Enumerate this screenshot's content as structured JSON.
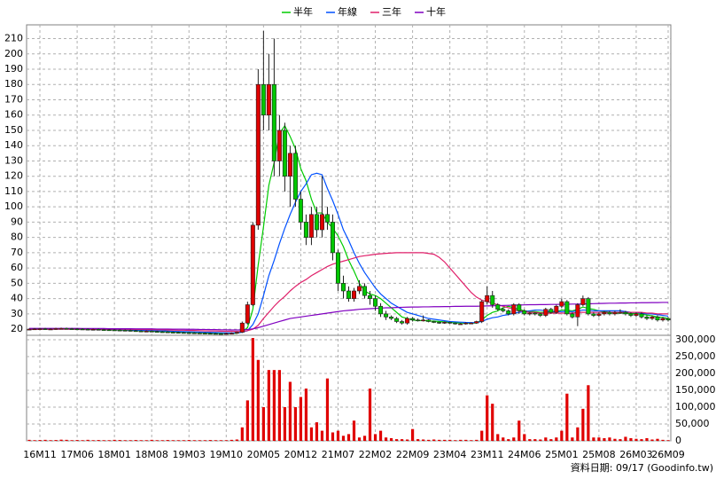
{
  "chart_data": {
    "type": "candlestick",
    "categories": [
      null,
      null,
      "16M11",
      null,
      null,
      null,
      null,
      null,
      null,
      "17M06",
      null,
      null,
      null,
      null,
      null,
      null,
      "18M01",
      null,
      null,
      null,
      null,
      null,
      null,
      "18M08",
      null,
      null,
      null,
      null,
      null,
      null,
      "19M03",
      null,
      null,
      null,
      null,
      null,
      null,
      "19M10",
      null,
      null,
      null,
      null,
      null,
      null,
      "20M05",
      null,
      null,
      null,
      null,
      null,
      null,
      "20M12",
      null,
      null,
      null,
      null,
      null,
      null,
      "21M07",
      null,
      null,
      null,
      null,
      null,
      null,
      "22M02",
      null,
      null,
      null,
      null,
      null,
      null,
      "22M09",
      null,
      null,
      null,
      null,
      null,
      null,
      "23M04",
      null,
      null,
      null,
      null,
      null,
      null,
      "23M11",
      null,
      null,
      null,
      null,
      null,
      null,
      "24M06",
      null,
      null,
      null,
      null,
      null,
      null,
      "25M01",
      null,
      null,
      null,
      null,
      null,
      null,
      "25M08",
      null,
      null,
      null,
      null,
      null,
      null,
      "26M03",
      null,
      null,
      null,
      null,
      null,
      "26M09"
    ],
    "open": [
      20,
      20,
      20.2,
      20.3,
      20,
      20.1,
      20.4,
      20.5,
      20.3,
      20.2,
      20.1,
      20,
      19.8,
      19.9,
      19.7,
      19.6,
      19.5,
      19.4,
      19.3,
      19.2,
      19,
      18.8,
      18.6,
      18.7,
      18.5,
      18.3,
      18.2,
      18,
      17.9,
      17.8,
      17.7,
      17.6,
      17.5,
      17.4,
      17.3,
      17.2,
      17.1,
      17,
      17.2,
      17.4,
      18,
      24,
      36,
      88,
      180,
      160,
      180,
      130,
      150,
      120,
      135,
      105,
      90,
      80,
      95,
      85,
      95,
      90,
      70,
      50,
      45,
      40,
      45,
      48,
      42,
      40,
      35,
      30,
      28,
      27,
      25,
      24,
      27,
      26,
      25.5,
      26,
      25,
      24.5,
      24,
      24.5,
      24,
      23.5,
      23.5,
      24,
      24,
      25,
      38,
      42,
      36,
      33,
      32,
      30,
      36,
      32,
      30,
      30.5,
      30,
      29,
      33,
      31,
      35,
      38,
      30,
      28,
      36,
      40,
      30,
      29,
      30,
      31,
      30,
      31,
      31,
      30,
      29,
      30,
      28,
      27,
      28,
      26,
      27
    ],
    "high": [
      20.5,
      20.7,
      20.8,
      20.8,
      20.6,
      20.9,
      21,
      21,
      20.8,
      20.7,
      20.6,
      20.5,
      20.4,
      20.4,
      20.2,
      20.1,
      20,
      19.9,
      19.8,
      19.7,
      19.5,
      19.3,
      19.2,
      19.2,
      19,
      18.8,
      18.7,
      18.5,
      18.4,
      18.3,
      18.2,
      18.1,
      18,
      17.9,
      17.8,
      17.7,
      17.6,
      17.7,
      17.9,
      18.5,
      25,
      38,
      90,
      190,
      215,
      200,
      210,
      160,
      155,
      140,
      140,
      110,
      95,
      100,
      100,
      120,
      100,
      95,
      72,
      55,
      48,
      47,
      52,
      50,
      45,
      42,
      37,
      32,
      29,
      28,
      26,
      28,
      28,
      27,
      29,
      26.5,
      25.5,
      25,
      25,
      25,
      24.5,
      24,
      24.5,
      24.5,
      25.5,
      39,
      48,
      45,
      37,
      34,
      33,
      37,
      37,
      33,
      31,
      31,
      30.5,
      34,
      34,
      36,
      40,
      39,
      31,
      37,
      42,
      41,
      31,
      31,
      32,
      32,
      32,
      33,
      32,
      31,
      31,
      31,
      29,
      29,
      29,
      28,
      28
    ],
    "low": [
      19.5,
      19.5,
      19.7,
      19.5,
      19.5,
      19.6,
      19.9,
      19.8,
      19.7,
      19.6,
      19.5,
      19.3,
      19.3,
      19.2,
      19.1,
      19,
      18.9,
      18.8,
      18.7,
      18.5,
      18.3,
      18.1,
      18.1,
      18,
      17.8,
      17.7,
      17.5,
      17.4,
      17.3,
      17.2,
      17.1,
      17,
      16.9,
      16.8,
      16.7,
      16.6,
      16.5,
      16.5,
      16.7,
      16.9,
      17.5,
      23,
      35,
      85,
      150,
      150,
      120,
      120,
      110,
      100,
      100,
      85,
      75,
      75,
      80,
      80,
      85,
      65,
      45,
      40,
      38,
      38,
      43,
      40,
      36,
      32,
      28,
      26,
      26,
      24,
      23,
      23,
      25,
      25,
      25,
      24.5,
      24,
      23.5,
      23.5,
      23.5,
      23,
      23,
      23,
      23.5,
      23.5,
      24,
      36,
      34,
      32,
      31,
      29,
      29,
      30,
      29,
      29,
      29,
      28,
      28,
      30,
      30,
      34,
      29,
      27,
      22,
      35,
      29,
      28,
      28,
      29,
      29,
      29,
      30,
      29,
      28,
      28,
      27,
      26,
      26,
      25,
      25,
      25
    ],
    "close": [
      20,
      20.2,
      20.3,
      20,
      20.1,
      20.4,
      20.5,
      20.3,
      20.2,
      20.1,
      20,
      19.8,
      19.9,
      19.7,
      19.6,
      19.5,
      19.4,
      19.3,
      19.2,
      19,
      18.8,
      18.6,
      18.7,
      18.5,
      18.3,
      18.2,
      18,
      17.9,
      17.8,
      17.7,
      17.6,
      17.5,
      17.4,
      17.3,
      17.2,
      17.1,
      17,
      17.2,
      17.4,
      18,
      24,
      36,
      88,
      180,
      160,
      180,
      130,
      150,
      120,
      135,
      105,
      90,
      80,
      95,
      85,
      95,
      90,
      70,
      50,
      45,
      40,
      45,
      48,
      42,
      40,
      35,
      30,
      28,
      27,
      25,
      24,
      27,
      26,
      25.5,
      26,
      25,
      24.5,
      24,
      24.5,
      24,
      23.5,
      23.5,
      24,
      24,
      25,
      38,
      42,
      36,
      33,
      32,
      30,
      36,
      32,
      30,
      30.5,
      30,
      29,
      33,
      31,
      35,
      38,
      30,
      28,
      36,
      40,
      30,
      29,
      30,
      31,
      30,
      31,
      31,
      30,
      29,
      30,
      28,
      27,
      28,
      26,
      27,
      26
    ],
    "colors": {
      "up": "#e00000",
      "down": "#00c800",
      "outline": "#202020"
    },
    "ylim": [
      16,
      219
    ],
    "yticks": [
      20,
      30,
      40,
      50,
      60,
      70,
      80,
      90,
      100,
      110,
      120,
      130,
      140,
      150,
      160,
      170,
      180,
      190,
      200,
      210
    ],
    "grid": true,
    "series": [
      {
        "name": "半年",
        "color": "#00cc00",
        "values": [
          20,
          20.1,
          20.2,
          20.2,
          20.2,
          20.2,
          20.3,
          20.3,
          20.3,
          20.2,
          20.2,
          20.1,
          20,
          19.9,
          19.8,
          19.7,
          19.6,
          19.5,
          19.4,
          19.3,
          19.1,
          19,
          18.9,
          18.7,
          18.6,
          18.5,
          18.3,
          18.2,
          18.1,
          18,
          17.9,
          17.8,
          17.7,
          17.5,
          17.4,
          17.3,
          17.2,
          17.2,
          17.2,
          17.3,
          18.4,
          21,
          33,
          62,
          87,
          114,
          129,
          148,
          153,
          146,
          138,
          125,
          117,
          105,
          96,
          96,
          90,
          86,
          81,
          74,
          65,
          58,
          50,
          45,
          43,
          42,
          40,
          37,
          34,
          31,
          28,
          27,
          26,
          25.6,
          25.6,
          25.4,
          25.3,
          25,
          24.8,
          24.4,
          24.2,
          24,
          24,
          24,
          24,
          26,
          29,
          31,
          32,
          34,
          35,
          34,
          33,
          32,
          31.5,
          31.5,
          31,
          31,
          31,
          31.5,
          32.5,
          32.5,
          32,
          33,
          34.5,
          33.5,
          33,
          32,
          31.5,
          31,
          30.5,
          30.5,
          30.5,
          30.3,
          30.2,
          29.8,
          29.2,
          28.8,
          28,
          27.7,
          27
        ]
      },
      {
        "name": "年線",
        "color": "#0050ff",
        "values": [
          20,
          20,
          20.1,
          20.1,
          20.1,
          20.2,
          20.2,
          20.2,
          20.2,
          20.2,
          20.2,
          20.1,
          20.1,
          20,
          20,
          19.9,
          19.8,
          19.7,
          19.6,
          19.5,
          19.4,
          19.3,
          19.2,
          19.1,
          19,
          18.9,
          18.8,
          18.6,
          18.5,
          18.4,
          18.3,
          18.2,
          18.1,
          18,
          17.9,
          17.8,
          17.7,
          17.6,
          17.5,
          17.5,
          18,
          19,
          23,
          30,
          42,
          55,
          65,
          76,
          86,
          95,
          103,
          110,
          115,
          121,
          122,
          121,
          112,
          104,
          95,
          85,
          78,
          70,
          63,
          57,
          52,
          47,
          43,
          40,
          37,
          35,
          33,
          31,
          30,
          29,
          28,
          27,
          26.5,
          26,
          25.5,
          25,
          24.8,
          24.6,
          24.4,
          24.3,
          24.3,
          25,
          26.5,
          27.5,
          28,
          29,
          29.5,
          30.5,
          31,
          31.5,
          32,
          32.5,
          32.5,
          32,
          31.5,
          31.5,
          31.5,
          31.5,
          31.5,
          32,
          32.5,
          32.5,
          32,
          32,
          32,
          32,
          32,
          32,
          31.5,
          31,
          31,
          30.5,
          30,
          30,
          29.5,
          29,
          28.5
        ]
      },
      {
        "name": "三年",
        "color": "#e0206a",
        "values": [
          20,
          20,
          20,
          20,
          20,
          20,
          20,
          20,
          20,
          20,
          20,
          20,
          20,
          20,
          20,
          20,
          20,
          20,
          19.9,
          19.9,
          19.8,
          19.8,
          19.7,
          19.7,
          19.6,
          19.6,
          19.5,
          19.4,
          19.3,
          19.3,
          19.2,
          19.1,
          19,
          18.9,
          18.8,
          18.8,
          18.7,
          18.6,
          18.6,
          18.5,
          18.5,
          19,
          20,
          22.5,
          27,
          31,
          35,
          38.5,
          41.5,
          45,
          48,
          50.5,
          52.5,
          55,
          57,
          59,
          61,
          62.5,
          63.5,
          64.5,
          65.5,
          66.5,
          67.5,
          68,
          68.5,
          69,
          69.3,
          69.6,
          69.8,
          70,
          70,
          70,
          70,
          70,
          70,
          69.5,
          69,
          67,
          64,
          60,
          56,
          52,
          48,
          44,
          41,
          39,
          38,
          37,
          36,
          35,
          34,
          33,
          32,
          31.5,
          31,
          31,
          30.5,
          30.5,
          30.5,
          30.5,
          30.5,
          30.5,
          30.5,
          31,
          31,
          31,
          31,
          31,
          31,
          31,
          31,
          31,
          31,
          31,
          31,
          31,
          30.5,
          30.5,
          30,
          30,
          30
        ]
      },
      {
        "name": "十年",
        "color": "#8000c0",
        "values": [
          20.5,
          20.5,
          20.5,
          20.5,
          20.5,
          20.5,
          20.5,
          20.5,
          20.5,
          20.5,
          20.4,
          20.4,
          20.4,
          20.4,
          20.4,
          20.3,
          20.3,
          20.3,
          20.3,
          20.3,
          20.2,
          20.2,
          20.2,
          20.2,
          20.1,
          20.1,
          20.1,
          20,
          20,
          20,
          19.9,
          19.9,
          19.8,
          19.8,
          19.7,
          19.7,
          19.6,
          19.6,
          19.5,
          19.5,
          19.5,
          19.8,
          20.2,
          21,
          22,
          23,
          24,
          25,
          26,
          27,
          27.5,
          28,
          28.5,
          29,
          29.5,
          30,
          30.5,
          31,
          31.5,
          32,
          32.3,
          32.6,
          33,
          33.2,
          33.4,
          33.6,
          33.8,
          34,
          34,
          34.2,
          34.3,
          34.4,
          34.5,
          34.5,
          34.6,
          34.6,
          34.7,
          34.7,
          34.8,
          34.8,
          34.9,
          34.9,
          35,
          35,
          35,
          35.1,
          35.2,
          35.3,
          35.4,
          35.5,
          35.6,
          35.7,
          35.8,
          35.9,
          36,
          36,
          36.1,
          36.1,
          36.2,
          36.2,
          36.3,
          36.3,
          36.4,
          36.4,
          36.5,
          36.6,
          36.7,
          36.8,
          36.9,
          37,
          37,
          37.1,
          37.1,
          37.2,
          37.2,
          37.3,
          37.3,
          37.4,
          37.4,
          37.5,
          37.5
        ]
      }
    ],
    "volume": {
      "color": "#e00000",
      "ylim": [
        0,
        313000
      ],
      "yticks": [
        0,
        {
          "value": 50000,
          "label": "50,000"
        },
        {
          "value": 100000,
          "label": "100,000"
        },
        {
          "value": 150000,
          "label": "150,000"
        },
        {
          "value": 200000,
          "label": "200,000"
        },
        {
          "value": 250000,
          "label": "250,000"
        },
        {
          "value": 300000,
          "label": "300,000"
        }
      ],
      "values": [
        3000,
        2000,
        2500,
        3000,
        2000,
        2500,
        3500,
        3000,
        2000,
        2500,
        2000,
        3000,
        2000,
        2500,
        2000,
        2000,
        3000,
        2500,
        2000,
        2000,
        2500,
        2000,
        2000,
        3000,
        2000,
        2000,
        2500,
        2000,
        2000,
        2000,
        2500,
        2000,
        2000,
        2000,
        2500,
        2000,
        2000,
        2000,
        3000,
        4000,
        40000,
        120000,
        305000,
        240000,
        100000,
        210000,
        210000,
        210000,
        100000,
        175000,
        100000,
        130000,
        155000,
        40000,
        55000,
        30000,
        185000,
        25000,
        30000,
        15000,
        20000,
        60000,
        10000,
        15000,
        155000,
        20000,
        30000,
        10000,
        8000,
        5000,
        5000,
        4000,
        35000,
        5000,
        4000,
        3000,
        4000,
        3000,
        3000,
        3000,
        2000,
        3000,
        3000,
        2000,
        3000,
        30000,
        135000,
        110000,
        20000,
        10000,
        5000,
        10000,
        60000,
        20000,
        5000,
        5000,
        4000,
        10000,
        5000,
        10000,
        30000,
        140000,
        10000,
        40000,
        95000,
        165000,
        10000,
        10000,
        8000,
        10000,
        6000,
        5000,
        12000,
        8000,
        6000,
        5000,
        8000,
        4000,
        6000,
        3000,
        2000
      ]
    },
    "footnote": "資料日期: 09/17 (Goodinfo.tw)"
  }
}
